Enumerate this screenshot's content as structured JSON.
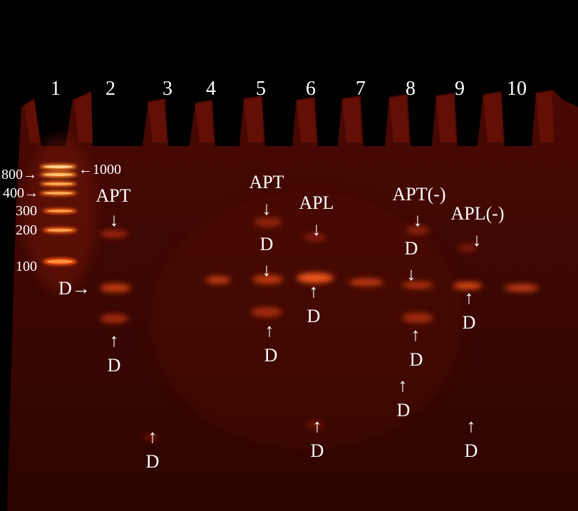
{
  "lane_numbers": [
    "1",
    "2",
    "3",
    "4",
    "5",
    "6",
    "7",
    "8",
    "9",
    "10"
  ],
  "marker": {
    "left_labels": [
      "800",
      "400",
      "300",
      "200",
      "100"
    ],
    "right_label": "1000",
    "right_arrow": "←",
    "left_arrow": "→"
  },
  "annotations": {
    "arrow_down": "↓",
    "arrow_up": "↑",
    "arrow_right": "→",
    "d": "D",
    "lane2_tag": "APT",
    "lane5_tag": "APT",
    "lane6_tag": "APL",
    "lane8_tag": "APT(-)",
    "lane9_tag": "APL(-)"
  },
  "colors": {
    "background": "#030000",
    "gel": "#3d0702",
    "band": "#ff7a1a",
    "text": "#ffffff"
  }
}
